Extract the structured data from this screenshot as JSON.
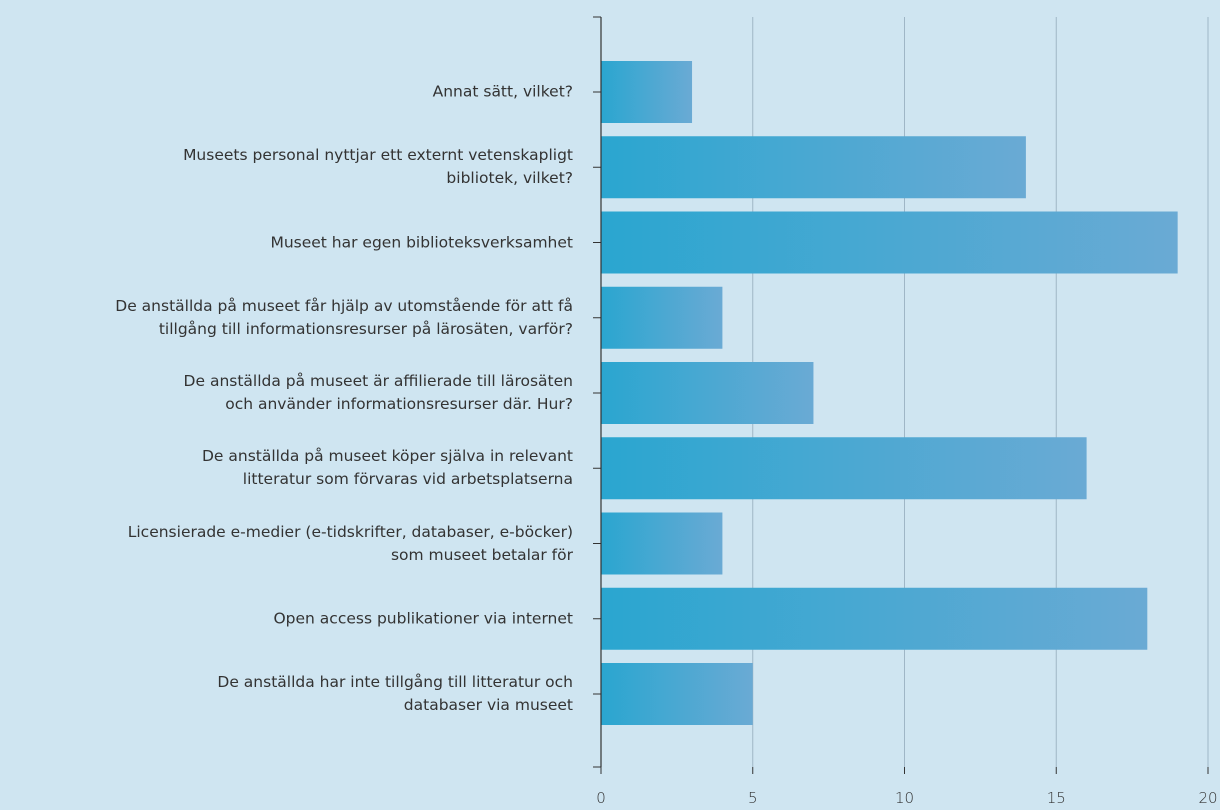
{
  "chart_data": {
    "type": "barh",
    "categories": [
      "Annat sätt, vilket?",
      "Museets personal nyttjar ett externt vetenskapligt\nbibliotek, vilket?",
      "Museet har egen biblioteksverksamhet",
      "De anställda på museet får hjälp av utomstående för att få\ntillgång till informationsresurser på lärosäten, varför?",
      "De anställda på museet är affilierade till lärosäten\noch använder informationsresurser där. Hur?",
      "De anställda på museet köper själva in relevant\nlitteratur som förvaras vid arbetsplatserna",
      "Licensierade e-medier (e-tidskrifter, databaser, e-böcker)\nsom museet betalar för",
      "Open access publikationer via internet",
      "De anställda har inte tillgång till litteratur och\ndatabaser via museet"
    ],
    "values": [
      3,
      14,
      19,
      4,
      7,
      16,
      4,
      18,
      5
    ],
    "xlim": [
      0,
      20
    ],
    "xticks": [
      0,
      5,
      10,
      15,
      20
    ],
    "grid": true
  }
}
